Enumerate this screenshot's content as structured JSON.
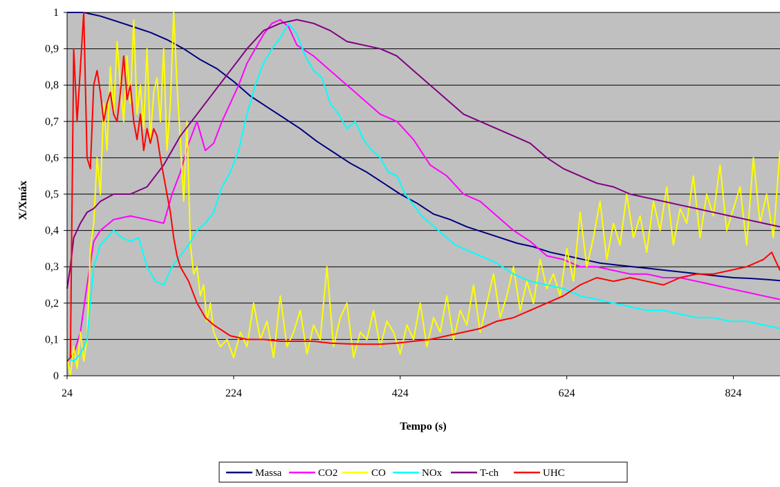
{
  "chart_data": {
    "type": "line",
    "xlabel": "Tempo (s)",
    "ylabel": "X/Xmáx",
    "xlim": [
      24,
      880
    ],
    "ylim": [
      0,
      1
    ],
    "xticks": [
      "24",
      "224",
      "424",
      "624",
      "824"
    ],
    "yticks": [
      "0",
      "0,1",
      "0,2",
      "0,3",
      "0,4",
      "0,5",
      "0,6",
      "0,7",
      "0,8",
      "0,9",
      "1"
    ],
    "grid": true,
    "plot_background": "#c0c0c0",
    "legend_position": "bottom",
    "series": [
      {
        "name": "Massa",
        "color": "#000080",
        "x": [
          24,
          44,
          64,
          84,
          104,
          124,
          144,
          164,
          184,
          204,
          224,
          244,
          264,
          284,
          304,
          324,
          344,
          364,
          384,
          404,
          424,
          444,
          464,
          484,
          504,
          524,
          544,
          564,
          584,
          604,
          624,
          644,
          664,
          684,
          704,
          724,
          744,
          764,
          784,
          804,
          824,
          844,
          864,
          880
        ],
        "y": [
          1.0,
          1.0,
          0.99,
          0.975,
          0.96,
          0.945,
          0.925,
          0.9,
          0.87,
          0.845,
          0.81,
          0.77,
          0.74,
          0.71,
          0.68,
          0.645,
          0.615,
          0.585,
          0.56,
          0.53,
          0.5,
          0.475,
          0.445,
          0.43,
          0.41,
          0.395,
          0.38,
          0.365,
          0.355,
          0.34,
          0.33,
          0.32,
          0.31,
          0.305,
          0.3,
          0.295,
          0.29,
          0.285,
          0.28,
          0.275,
          0.27,
          0.268,
          0.265,
          0.262
        ]
      },
      {
        "name": "CO2",
        "color": "#ff00ff",
        "x": [
          24,
          32,
          40,
          48,
          56,
          64,
          80,
          100,
          120,
          140,
          150,
          160,
          170,
          180,
          190,
          200,
          210,
          220,
          230,
          240,
          250,
          260,
          270,
          280,
          290,
          300,
          320,
          340,
          360,
          380,
          400,
          420,
          440,
          460,
          480,
          500,
          520,
          540,
          560,
          580,
          600,
          620,
          640,
          660,
          680,
          700,
          720,
          740,
          760,
          780,
          800,
          820,
          840,
          860,
          880
        ],
        "y": [
          0.04,
          0.06,
          0.12,
          0.25,
          0.37,
          0.4,
          0.43,
          0.44,
          0.43,
          0.42,
          0.5,
          0.56,
          0.64,
          0.7,
          0.62,
          0.64,
          0.7,
          0.75,
          0.8,
          0.86,
          0.9,
          0.94,
          0.97,
          0.98,
          0.96,
          0.91,
          0.88,
          0.84,
          0.8,
          0.76,
          0.72,
          0.7,
          0.65,
          0.58,
          0.55,
          0.5,
          0.48,
          0.44,
          0.4,
          0.37,
          0.33,
          0.32,
          0.3,
          0.3,
          0.29,
          0.28,
          0.28,
          0.27,
          0.27,
          0.26,
          0.25,
          0.24,
          0.23,
          0.22,
          0.21
        ]
      },
      {
        "name": "CO",
        "color": "#ffff00",
        "x": [
          24,
          28,
          32,
          36,
          40,
          44,
          48,
          52,
          56,
          60,
          64,
          68,
          72,
          76,
          80,
          84,
          88,
          92,
          96,
          100,
          104,
          108,
          112,
          116,
          120,
          124,
          128,
          132,
          136,
          140,
          144,
          148,
          152,
          156,
          160,
          164,
          168,
          172,
          176,
          180,
          184,
          188,
          192,
          196,
          200,
          208,
          216,
          224,
          232,
          240,
          248,
          256,
          264,
          272,
          280,
          288,
          296,
          304,
          312,
          320,
          328,
          336,
          344,
          352,
          360,
          368,
          376,
          384,
          392,
          400,
          408,
          416,
          424,
          432,
          440,
          448,
          456,
          464,
          472,
          480,
          488,
          496,
          504,
          512,
          520,
          528,
          536,
          544,
          552,
          560,
          568,
          576,
          584,
          592,
          600,
          608,
          616,
          624,
          632,
          640,
          648,
          656,
          664,
          672,
          680,
          688,
          696,
          704,
          712,
          720,
          728,
          736,
          744,
          752,
          760,
          768,
          776,
          784,
          792,
          800,
          808,
          816,
          824,
          832,
          840,
          848,
          856,
          864,
          872,
          880
        ],
        "y": [
          0.05,
          0.0,
          0.08,
          0.02,
          0.12,
          0.04,
          0.1,
          0.35,
          0.42,
          0.6,
          0.5,
          0.75,
          0.62,
          0.85,
          0.72,
          0.92,
          0.8,
          0.7,
          0.88,
          0.75,
          0.98,
          0.72,
          0.8,
          0.68,
          0.9,
          0.65,
          0.78,
          0.82,
          0.7,
          0.9,
          0.62,
          0.75,
          1.0,
          0.8,
          0.65,
          0.48,
          0.7,
          0.36,
          0.28,
          0.3,
          0.22,
          0.25,
          0.15,
          0.2,
          0.12,
          0.08,
          0.1,
          0.05,
          0.12,
          0.08,
          0.2,
          0.1,
          0.15,
          0.05,
          0.22,
          0.08,
          0.12,
          0.18,
          0.06,
          0.14,
          0.1,
          0.3,
          0.08,
          0.16,
          0.2,
          0.05,
          0.12,
          0.1,
          0.18,
          0.08,
          0.15,
          0.12,
          0.06,
          0.14,
          0.1,
          0.2,
          0.08,
          0.16,
          0.12,
          0.22,
          0.1,
          0.18,
          0.14,
          0.25,
          0.12,
          0.2,
          0.28,
          0.16,
          0.22,
          0.3,
          0.18,
          0.26,
          0.2,
          0.32,
          0.24,
          0.28,
          0.22,
          0.35,
          0.26,
          0.45,
          0.3,
          0.38,
          0.48,
          0.32,
          0.42,
          0.36,
          0.5,
          0.38,
          0.44,
          0.34,
          0.48,
          0.4,
          0.52,
          0.36,
          0.46,
          0.42,
          0.55,
          0.38,
          0.5,
          0.44,
          0.58,
          0.4,
          0.46,
          0.52,
          0.36,
          0.6,
          0.42,
          0.5,
          0.38,
          0.62
        ]
      },
      {
        "name": "NOx",
        "color": "#00ffff",
        "x": [
          24,
          32,
          40,
          48,
          56,
          64,
          72,
          80,
          90,
          100,
          110,
          120,
          130,
          140,
          150,
          160,
          170,
          180,
          190,
          200,
          210,
          220,
          230,
          240,
          250,
          260,
          270,
          280,
          290,
          300,
          310,
          320,
          330,
          340,
          350,
          360,
          370,
          380,
          390,
          400,
          410,
          420,
          430,
          440,
          450,
          460,
          470,
          480,
          490,
          500,
          510,
          520,
          530,
          540,
          560,
          580,
          600,
          620,
          640,
          660,
          680,
          700,
          720,
          740,
          760,
          780,
          800,
          820,
          840,
          860,
          880
        ],
        "y": [
          0.05,
          0.04,
          0.06,
          0.1,
          0.3,
          0.36,
          0.38,
          0.4,
          0.38,
          0.37,
          0.38,
          0.3,
          0.26,
          0.25,
          0.3,
          0.33,
          0.36,
          0.4,
          0.42,
          0.45,
          0.52,
          0.56,
          0.62,
          0.72,
          0.8,
          0.86,
          0.9,
          0.93,
          0.97,
          0.94,
          0.88,
          0.84,
          0.82,
          0.75,
          0.72,
          0.68,
          0.7,
          0.65,
          0.62,
          0.6,
          0.56,
          0.55,
          0.5,
          0.47,
          0.44,
          0.42,
          0.4,
          0.38,
          0.36,
          0.35,
          0.34,
          0.33,
          0.32,
          0.31,
          0.28,
          0.26,
          0.25,
          0.24,
          0.22,
          0.21,
          0.2,
          0.19,
          0.18,
          0.18,
          0.17,
          0.16,
          0.16,
          0.15,
          0.15,
          0.14,
          0.13
        ]
      },
      {
        "name": "T-ch",
        "color": "#800080",
        "x": [
          24,
          28,
          32,
          40,
          48,
          56,
          64,
          80,
          100,
          120,
          140,
          160,
          180,
          200,
          220,
          240,
          260,
          280,
          300,
          320,
          340,
          360,
          380,
          400,
          420,
          440,
          460,
          480,
          500,
          520,
          540,
          560,
          580,
          600,
          620,
          640,
          660,
          680,
          700,
          720,
          740,
          760,
          780,
          800,
          820,
          840,
          860,
          880
        ],
        "y": [
          0.24,
          0.3,
          0.38,
          0.42,
          0.45,
          0.46,
          0.48,
          0.5,
          0.5,
          0.52,
          0.58,
          0.66,
          0.72,
          0.78,
          0.84,
          0.9,
          0.95,
          0.97,
          0.98,
          0.97,
          0.95,
          0.92,
          0.91,
          0.9,
          0.88,
          0.84,
          0.8,
          0.76,
          0.72,
          0.7,
          0.68,
          0.66,
          0.64,
          0.6,
          0.57,
          0.55,
          0.53,
          0.52,
          0.5,
          0.49,
          0.48,
          0.47,
          0.46,
          0.45,
          0.44,
          0.43,
          0.42,
          0.41
        ]
      },
      {
        "name": "UHC",
        "color": "#ff0000",
        "x": [
          24,
          28,
          32,
          36,
          40,
          44,
          48,
          52,
          56,
          60,
          64,
          68,
          72,
          76,
          80,
          84,
          88,
          92,
          96,
          100,
          104,
          108,
          112,
          116,
          120,
          124,
          128,
          132,
          136,
          140,
          144,
          148,
          152,
          156,
          160,
          170,
          180,
          190,
          200,
          220,
          240,
          260,
          280,
          300,
          320,
          340,
          360,
          380,
          400,
          420,
          440,
          460,
          480,
          500,
          520,
          540,
          560,
          580,
          600,
          620,
          640,
          660,
          680,
          700,
          720,
          740,
          760,
          780,
          800,
          820,
          840,
          860,
          870,
          880
        ],
        "y": [
          0.04,
          0.05,
          0.9,
          0.7,
          0.85,
          1.0,
          0.6,
          0.57,
          0.8,
          0.84,
          0.78,
          0.7,
          0.75,
          0.78,
          0.72,
          0.7,
          0.78,
          0.88,
          0.76,
          0.8,
          0.7,
          0.65,
          0.72,
          0.62,
          0.68,
          0.64,
          0.68,
          0.66,
          0.6,
          0.55,
          0.5,
          0.45,
          0.38,
          0.33,
          0.3,
          0.26,
          0.2,
          0.16,
          0.14,
          0.11,
          0.1,
          0.1,
          0.095,
          0.095,
          0.095,
          0.09,
          0.088,
          0.087,
          0.087,
          0.09,
          0.095,
          0.1,
          0.11,
          0.12,
          0.13,
          0.15,
          0.16,
          0.18,
          0.2,
          0.22,
          0.25,
          0.27,
          0.26,
          0.27,
          0.26,
          0.25,
          0.27,
          0.28,
          0.28,
          0.29,
          0.3,
          0.32,
          0.34,
          0.29
        ]
      }
    ]
  }
}
